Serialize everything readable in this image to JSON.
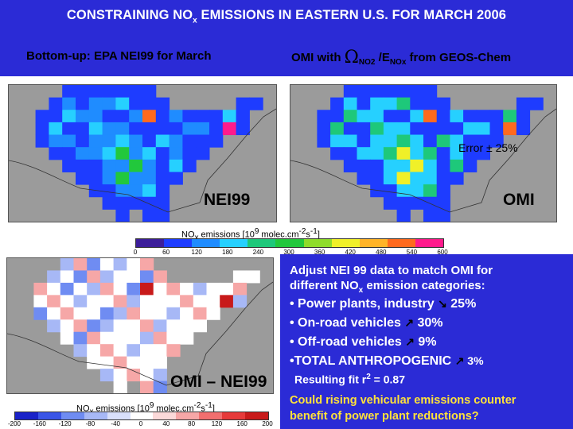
{
  "title": {
    "main": "CONSTRAINING NO",
    "sub": "x",
    "rest": " EMISSIONS IN EASTERN U.S. FOR MARCH 2006"
  },
  "subtitles": {
    "left": "Bottom-up: EPA NEI99 for March",
    "right": {
      "pre": "OMI with ",
      "omega": "Ω",
      "sub1": "NO2",
      "mid": " /E",
      "sub2": "NOx",
      "post": " from GEOS-Chem"
    }
  },
  "maps": {
    "nei": {
      "label": "NEI99"
    },
    "omi": {
      "label": "OMI",
      "error_note": "Error ± 25%"
    },
    "diff": {
      "label": "OMI – NEI99"
    }
  },
  "colorbar_top": {
    "title_pre": "NO",
    "title_sub": "x",
    "title_mid": " emissions  [10",
    "title_exp": "9",
    "title_post": " molec.cm",
    "title_exp2": "-2",
    "title_post2": "s",
    "title_exp3": "-1",
    "title_end": "]",
    "ticks": [
      "0",
      "60",
      "120",
      "180",
      "240",
      "300",
      "360",
      "420",
      "480",
      "540",
      "600"
    ],
    "colors": [
      "#3c1e9a",
      "#1e3cff",
      "#1f8cff",
      "#26d0ff",
      "#1ec87a",
      "#22c83c",
      "#8fdc2a",
      "#f0f028",
      "#ffb428",
      "#ff6a1e",
      "#ff1a8c"
    ]
  },
  "colorbar_bottom": {
    "title_pre": "NO",
    "title_sub": "x",
    "title_mid": " emissions  [10",
    "title_exp": "9",
    "title_post": " molec.cm",
    "title_exp2": "-2",
    "title_post2": "s",
    "title_exp3": "-1",
    "title_end": "]",
    "ticks": [
      "-200",
      "-160",
      "-120",
      "-80",
      "-40",
      "0",
      "40",
      "80",
      "120",
      "160",
      "200"
    ],
    "colors": [
      "#1a22c8",
      "#3a55e6",
      "#6f8cf2",
      "#a7b8f6",
      "#d9e0fb",
      "#ffffff",
      "#fbd9d9",
      "#f6a7a7",
      "#f26f6f",
      "#e63a3a",
      "#c81a1a"
    ]
  },
  "text": {
    "adjust_1": "Adjust NEI 99 data to match OMI for",
    "adjust_2_pre": "different NO",
    "adjust_2_sub": "x",
    "adjust_2_post": " emission categories:",
    "b1": "• Power plants, industry",
    "b1_arrow": "↘",
    "b1_val": " 25%",
    "b2": "• On-road vehicles",
    "b2_arrow": "↗",
    "b2_val": " 30%",
    "b3": "• Off-road vehicles",
    "b3_arrow": "↗",
    "b3_val": " 9%",
    "b4": "•TOTAL ANTHROPOGENIC",
    "b4_arrow": "↗",
    "b4_val": " 3%",
    "fit_pre": "Resulting fit r",
    "fit_exp": "2",
    "fit_post": " = 0.87",
    "q1": "Could rising vehicular emissions counter",
    "q2": "benefit of power plant reductions?"
  }
}
